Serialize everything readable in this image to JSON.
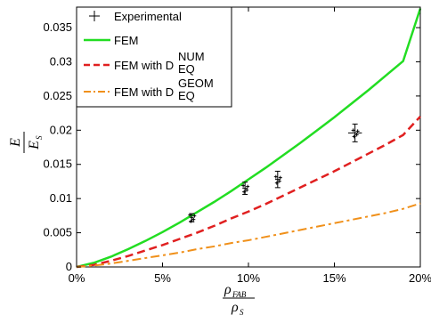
{
  "chart_data": {
    "type": "line",
    "xlim": [
      0,
      20
    ],
    "ylim": [
      0,
      0.038
    ],
    "x_ticks": [
      {
        "v": 0,
        "label": "0%"
      },
      {
        "v": 5,
        "label": "5%"
      },
      {
        "v": 10,
        "label": "10%"
      },
      {
        "v": 15,
        "label": "15%"
      },
      {
        "v": 20,
        "label": "20%"
      }
    ],
    "y_ticks": [
      {
        "v": 0,
        "label": "0"
      },
      {
        "v": 0.005,
        "label": "0.005"
      },
      {
        "v": 0.01,
        "label": "0.01"
      },
      {
        "v": 0.015,
        "label": "0.015"
      },
      {
        "v": 0.02,
        "label": "0.02"
      },
      {
        "v": 0.025,
        "label": "0.025"
      },
      {
        "v": 0.03,
        "label": "0.03"
      },
      {
        "v": 0.035,
        "label": "0.035"
      }
    ],
    "xlabel": {
      "num": "ρ",
      "num_sub": "FAB",
      "den": "ρ",
      "den_sub": "S"
    },
    "ylabel": {
      "num": "E",
      "den": "E",
      "den_sub": "S"
    },
    "legend": {
      "placement": "top-left",
      "entries": [
        {
          "text": "Experimental",
          "style": "marker"
        },
        {
          "text": "FEM",
          "style": "solid"
        },
        {
          "text": "FEM with D",
          "sub": "EQ",
          "sup": "NUM",
          "style": "dashed"
        },
        {
          "text": "FEM with D",
          "sub": "EQ",
          "sup": "GEOM",
          "style": "dashdot"
        }
      ]
    },
    "series": [
      {
        "name": "FEM",
        "color": "#22dd22",
        "style": "solid",
        "x": [
          0,
          1,
          2,
          3,
          4,
          5,
          6,
          7,
          8,
          9,
          10,
          11,
          12,
          13,
          14,
          15,
          16,
          17,
          18,
          19,
          20
        ],
        "y": [
          0,
          0.0006,
          0.0015,
          0.0026,
          0.0038,
          0.0051,
          0.0065,
          0.008,
          0.0095,
          0.0111,
          0.0128,
          0.0145,
          0.0163,
          0.0181,
          0.02,
          0.0219,
          0.0239,
          0.0259,
          0.028,
          0.0301,
          0.0378
        ]
      },
      {
        "name": "FEM with D_EQ^NUM",
        "color": "#e02020",
        "style": "dashed",
        "x": [
          0,
          1,
          2,
          3,
          4,
          5,
          6,
          7,
          8,
          9,
          10,
          11,
          12,
          13,
          14,
          15,
          16,
          17,
          18,
          19,
          20
        ],
        "y": [
          0,
          0.0003,
          0.0009,
          0.0016,
          0.0024,
          0.0032,
          0.0041,
          0.005,
          0.006,
          0.0071,
          0.0081,
          0.0092,
          0.0104,
          0.0116,
          0.0128,
          0.014,
          0.0153,
          0.0166,
          0.0179,
          0.0193,
          0.022
        ]
      },
      {
        "name": "FEM with D_EQ^GEOM",
        "color": "#f0901a",
        "style": "dashdot",
        "x": [
          0,
          1,
          2,
          3,
          4,
          5,
          6,
          7,
          8,
          9,
          10,
          11,
          12,
          13,
          14,
          15,
          16,
          17,
          18,
          19,
          20
        ],
        "y": [
          0,
          0.0002,
          0.0005,
          0.0009,
          0.0013,
          0.0017,
          0.0021,
          0.0026,
          0.003,
          0.0035,
          0.0039,
          0.0044,
          0.0049,
          0.0054,
          0.0059,
          0.0064,
          0.0069,
          0.0074,
          0.0079,
          0.0085,
          0.0093
        ]
      }
    ],
    "experimental": [
      {
        "x": 6.7,
        "y": 0.0072,
        "yerr": 0.0006,
        "xerr": 0.1
      },
      {
        "x": 9.8,
        "y": 0.0115,
        "yerr": 0.0009,
        "xerr": 0.15
      },
      {
        "x": 11.7,
        "y": 0.0128,
        "yerr": 0.0012,
        "xerr": 0.15
      },
      {
        "x": 16.2,
        "y": 0.0196,
        "yerr": 0.0013,
        "xerr": 0.4
      }
    ],
    "grid": false
  }
}
